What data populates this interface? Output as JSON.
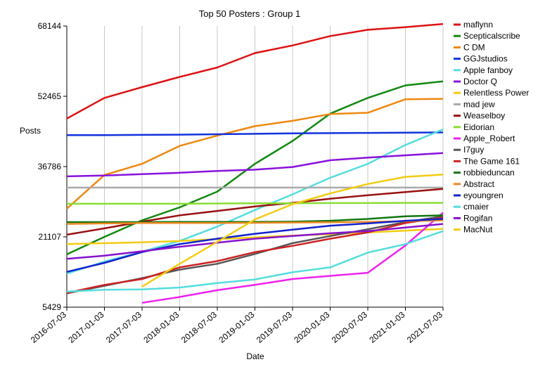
{
  "chart_data": {
    "type": "line",
    "title": "Top 50 Posters : Group 1",
    "xlabel": "Date",
    "ylabel": "Posts",
    "x": [
      "2016-07-03",
      "2017-01-03",
      "2017-07-03",
      "2018-01-03",
      "2018-07-03",
      "2019-01-03",
      "2019-07-03",
      "2020-01-03",
      "2020-07-03",
      "2021-01-03",
      "2021-07-03"
    ],
    "yticks": [
      5429,
      21107,
      36786,
      52465,
      68144
    ],
    "ylim": [
      5429,
      68144
    ],
    "grid": "vertical",
    "legend_position": "right",
    "series": [
      {
        "name": "maflynn",
        "color": "#dd1111",
        "values": [
          47500,
          52100,
          54500,
          56800,
          58900,
          62100,
          63800,
          65900,
          67300,
          67900,
          68600
        ]
      },
      {
        "name": "Scepticalscribe",
        "color": "#118811",
        "values": [
          17200,
          21100,
          24800,
          27700,
          31200,
          37400,
          42500,
          48600,
          52100,
          54900,
          55800
        ]
      },
      {
        "name": "C DM",
        "color": "#ee8811",
        "values": [
          27400,
          34900,
          37400,
          41400,
          43700,
          45800,
          47000,
          48500,
          48800,
          51800,
          51900
        ]
      },
      {
        "name": "GGJstudios",
        "color": "#1133dd",
        "values": [
          43800,
          43800,
          43850,
          43900,
          44000,
          44100,
          44200,
          44250,
          44300,
          44350,
          44400
        ]
      },
      {
        "name": "Apple fanboy",
        "color": "#55dddd",
        "values": [
          12900,
          15600,
          17800,
          20200,
          23400,
          27100,
          30600,
          34300,
          37400,
          41600,
          45100
        ]
      },
      {
        "name": "Doctor Q",
        "color": "#8811dd",
        "values": [
          34600,
          34800,
          35100,
          35400,
          35800,
          36100,
          36700,
          38200,
          38800,
          39300,
          39800
        ]
      },
      {
        "name": "Relentless Power",
        "color": "#f2cc11",
        "values": null,
        "points": [
          [
            2016.5,
            19500
          ],
          [
            2017.0,
            19700
          ],
          [
            2017.5,
            19900
          ],
          [
            2018.0,
            20200
          ],
          [
            2018.5,
            20600
          ],
          [
            2019.0,
            21000
          ],
          [
            2019.5,
            21400
          ],
          [
            2020.0,
            21700
          ],
          [
            2020.5,
            22100
          ],
          [
            2021.0,
            22500
          ],
          [
            2021.5,
            22900
          ]
        ]
      },
      {
        "name": "mad jew",
        "color": "#aaaaaa",
        "values": [
          32100,
          32100,
          32100,
          32100,
          32100,
          32100,
          32100,
          32100,
          32100,
          32100,
          32100
        ]
      },
      {
        "name": "Weaselboy",
        "color": "#991111",
        "values": [
          21600,
          23000,
          24500,
          25900,
          26900,
          27900,
          28700,
          29600,
          30400,
          31100,
          31800
        ]
      },
      {
        "name": "Eidorian",
        "color": "#88dd33",
        "values": [
          28500,
          28500,
          28500,
          28500,
          28550,
          28600,
          28600,
          28650,
          28650,
          28700,
          28700
        ]
      },
      {
        "name": "Apple_Robert",
        "color": "#ee22ee",
        "values": null,
        "points": [
          [
            2017.5,
            6400
          ],
          [
            2018.0,
            7700
          ],
          [
            2018.5,
            9200
          ],
          [
            2019.0,
            10400
          ],
          [
            2019.5,
            11700
          ],
          [
            2020.0,
            12400
          ],
          [
            2020.5,
            13100
          ],
          [
            2021.0,
            19200
          ],
          [
            2021.5,
            26500
          ]
        ]
      },
      {
        "name": "I7guy",
        "color": "#555555",
        "values": [
          8500,
          10200,
          11900,
          13800,
          15100,
          17300,
          19700,
          21300,
          22800,
          24400,
          25700
        ]
      },
      {
        "name": "The Game 161",
        "color": "#cc2222",
        "values": [
          8600,
          10400,
          11700,
          14300,
          15700,
          17700,
          19100,
          20700,
          22100,
          24200,
          25400
        ]
      },
      {
        "name": "robbieduncan",
        "color": "#117711",
        "values": [
          24400,
          24400,
          24400,
          24450,
          24450,
          24450,
          24500,
          24700,
          25100,
          25700,
          25900
        ]
      },
      {
        "name": "Abstract",
        "color": "#ee8822",
        "values": [
          24000,
          24100,
          24200,
          24200,
          24200,
          24250,
          24300,
          24350,
          24450,
          24600,
          24800
        ]
      },
      {
        "name": "eyoungren",
        "color": "#1122cc",
        "values": [
          13300,
          15300,
          17700,
          19500,
          20700,
          21800,
          22700,
          23600,
          24100,
          24700,
          25100
        ]
      },
      {
        "name": "cmaier",
        "color": "#55dddd",
        "values": [
          8900,
          9300,
          9400,
          9800,
          10800,
          11600,
          13200,
          14300,
          17600,
          19500,
          22400
        ]
      },
      {
        "name": "Rogifan",
        "color": "#8811cc",
        "values": [
          16200,
          16900,
          17900,
          18900,
          19800,
          20700,
          21300,
          21900,
          22400,
          23200,
          24000
        ]
      },
      {
        "name": "MacNut",
        "color": "#f2cc11",
        "values": [
          null,
          null,
          10000,
          15100,
          20000,
          25000,
          28400,
          30800,
          32900,
          34500,
          35000
        ]
      }
    ]
  }
}
